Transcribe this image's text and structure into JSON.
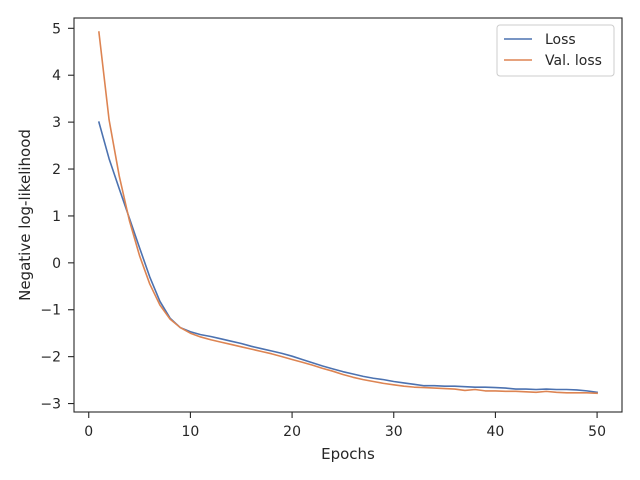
{
  "chart_data": {
    "type": "line",
    "title": "",
    "xlabel": "Epochs",
    "ylabel": "Negative log-likelihood",
    "xlim": [
      -1.45,
      52.45
    ],
    "ylim": [
      -3.18,
      5.22
    ],
    "xticks": [
      0,
      10,
      20,
      30,
      40,
      50
    ],
    "xtick_labels": [
      "0",
      "10",
      "20",
      "30",
      "40",
      "50"
    ],
    "yticks": [
      -3,
      -2,
      -1,
      0,
      1,
      2,
      3,
      4,
      5
    ],
    "ytick_labels": [
      "−3",
      "−2",
      "−1",
      "0",
      "1",
      "2",
      "3",
      "4",
      "5"
    ],
    "grid": false,
    "legend_position": "upper right",
    "x": [
      1,
      2,
      3,
      4,
      5,
      6,
      7,
      8,
      9,
      10,
      11,
      12,
      13,
      14,
      15,
      16,
      17,
      18,
      19,
      20,
      21,
      22,
      23,
      24,
      25,
      26,
      27,
      28,
      29,
      30,
      31,
      32,
      33,
      34,
      35,
      36,
      37,
      38,
      39,
      40,
      41,
      42,
      43,
      44,
      45,
      46,
      47,
      48,
      49,
      50
    ],
    "series": [
      {
        "name": "Loss",
        "color": "#4c72b0",
        "values": [
          3.0,
          2.22,
          1.58,
          0.95,
          0.32,
          -0.3,
          -0.82,
          -1.18,
          -1.38,
          -1.47,
          -1.53,
          -1.57,
          -1.62,
          -1.67,
          -1.72,
          -1.78,
          -1.83,
          -1.88,
          -1.93,
          -1.99,
          -2.06,
          -2.13,
          -2.2,
          -2.26,
          -2.32,
          -2.37,
          -2.42,
          -2.46,
          -2.49,
          -2.53,
          -2.56,
          -2.59,
          -2.62,
          -2.62,
          -2.63,
          -2.63,
          -2.64,
          -2.65,
          -2.65,
          -2.66,
          -2.67,
          -2.69,
          -2.69,
          -2.7,
          -2.69,
          -2.7,
          -2.7,
          -2.71,
          -2.73,
          -2.76
        ]
      },
      {
        "name": "Val. loss",
        "color": "#dd8452",
        "values": [
          4.92,
          3.05,
          1.85,
          0.9,
          0.15,
          -0.45,
          -0.9,
          -1.2,
          -1.38,
          -1.5,
          -1.58,
          -1.64,
          -1.69,
          -1.74,
          -1.79,
          -1.84,
          -1.89,
          -1.94,
          -2.0,
          -2.06,
          -2.12,
          -2.18,
          -2.25,
          -2.31,
          -2.38,
          -2.44,
          -2.49,
          -2.53,
          -2.57,
          -2.6,
          -2.63,
          -2.65,
          -2.66,
          -2.67,
          -2.68,
          -2.69,
          -2.72,
          -2.7,
          -2.73,
          -2.73,
          -2.74,
          -2.74,
          -2.75,
          -2.76,
          -2.74,
          -2.76,
          -2.77,
          -2.77,
          -2.77,
          -2.78
        ]
      }
    ]
  }
}
